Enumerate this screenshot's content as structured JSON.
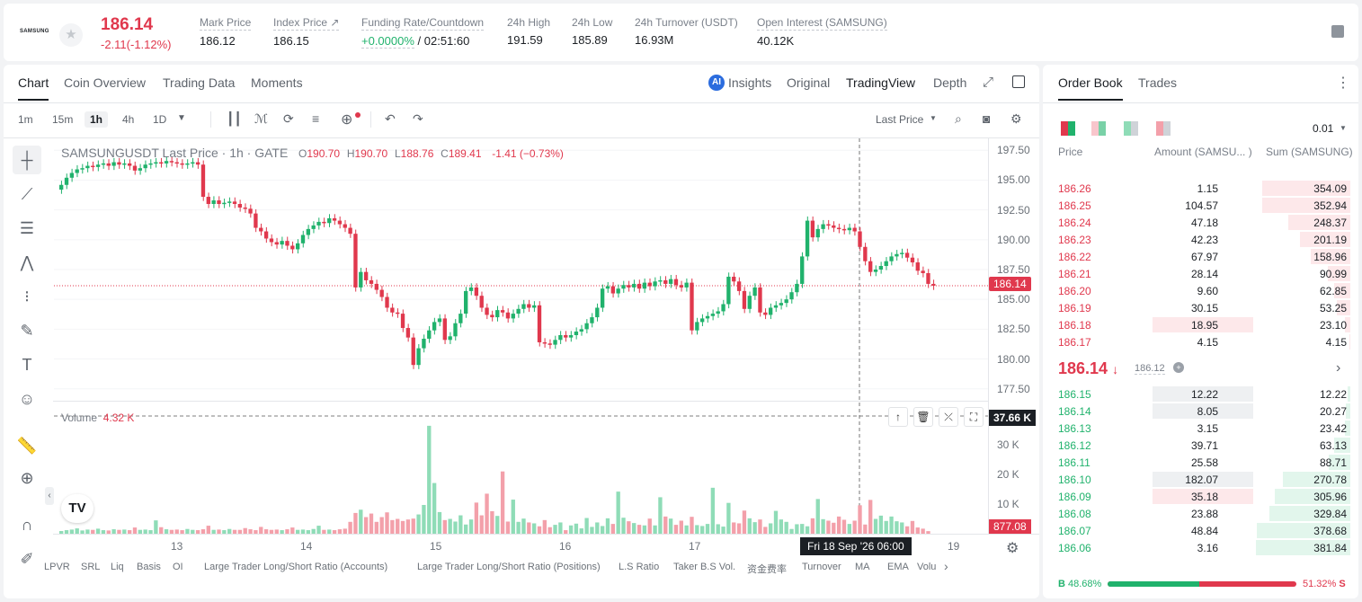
{
  "header": {
    "logo": "SAMSUNG",
    "price": "186.14",
    "change": "-2.11(-1.12%)",
    "stats": [
      {
        "label": "Mark Price",
        "value": "186.12"
      },
      {
        "label": "Index Price ↗",
        "value": "186.15"
      },
      {
        "label": "Funding Rate/Countdown",
        "value_green": "+0.0000%",
        "value": " / 02:51:60"
      },
      {
        "label": "24h High",
        "value": "191.59"
      },
      {
        "label": "24h Low",
        "value": "185.89"
      },
      {
        "label": "24h Turnover (USDT)",
        "value": "16.93M"
      },
      {
        "label": "Open Interest (SAMSUNG)",
        "value": "40.12K"
      }
    ]
  },
  "chart_tabs": [
    "Chart",
    "Coin Overview",
    "Trading Data",
    "Moments"
  ],
  "view_tabs": {
    "insights": "Insights",
    "original": "Original",
    "tradingview": "TradingView",
    "depth": "Depth"
  },
  "intervals": [
    "1m",
    "15m",
    "1h",
    "4h",
    "1D"
  ],
  "price_type": "Last Price",
  "legend": {
    "symbol": "SAMSUNGUSDT Last Price · 1h · GATE",
    "o": "O",
    "o_val": "190.70",
    "h": "H",
    "h_val": "190.70",
    "l": "L",
    "l_val": "188.76",
    "c": "C",
    "c_val": "189.41",
    "chg": "-1.41 (−0.73%)"
  },
  "volume_legend": {
    "label": "Volume",
    "value": "4.32 K"
  },
  "price_tag": "186.14",
  "volume_tag": "37.66 K",
  "volume_last_tag": "877.08",
  "crosshair_date": "Fri 18 Sep '26   06:00",
  "indicators": [
    "LPVR",
    "SRL",
    "Liq",
    "Basis",
    "OI",
    "Large Trader Long/Short Ratio (Accounts)",
    "Large Trader Long/Short Ratio (Positions)",
    "L.S Ratio",
    "Taker B.S Vol.",
    "资金费率",
    "Turnover",
    "MA",
    "EMA",
    "Volu"
  ],
  "chart_data": {
    "type": "candlestick",
    "y_ticks": [
      "197.50",
      "195.00",
      "192.50",
      "190.00",
      "187.50",
      "185.00",
      "182.50",
      "180.00",
      "177.50"
    ],
    "volume_ticks": [
      "30 K",
      "20 K",
      "10 K"
    ],
    "x_ticks": [
      "13",
      "14",
      "15",
      "16",
      "17",
      "19"
    ],
    "ylim": [
      176.5,
      198.5
    ],
    "volume_ylim": [
      0,
      40000
    ],
    "close_series": [
      194.6,
      195.2,
      195.6,
      195.9,
      196.0,
      196.2,
      196.1,
      196.3,
      196.4,
      196.2,
      196.5,
      196.3,
      196.4,
      196.2,
      195.8,
      196.0,
      196.3,
      196.4,
      196.5,
      196.4,
      196.6,
      196.5,
      196.4,
      196.3,
      196.4,
      196.5,
      196.3,
      193.6,
      193.0,
      193.3,
      193.0,
      193.1,
      193.2,
      193.0,
      192.7,
      192.6,
      192.2,
      191.0,
      190.7,
      190.1,
      189.8,
      189.6,
      189.9,
      189.5,
      189.2,
      189.7,
      190.4,
      190.9,
      191.2,
      191.5,
      191.4,
      191.8,
      191.6,
      191.3,
      191.0,
      190.5,
      186.0,
      187.3,
      186.6,
      186.3,
      185.8,
      185.2,
      184.3,
      183.9,
      183.8,
      182.6,
      181.8,
      179.5,
      180.9,
      181.7,
      182.4,
      183.1,
      183.4,
      181.6,
      181.9,
      183.0,
      183.8,
      185.7,
      186.0,
      185.3,
      184.3,
      183.7,
      183.5,
      184.1,
      183.9,
      183.4,
      183.8,
      184.2,
      184.6,
      184.3,
      184.5,
      181.4,
      181.3,
      181.2,
      181.6,
      182.0,
      181.8,
      182.0,
      182.3,
      182.5,
      183.0,
      183.5,
      184.3,
      185.9,
      186.1,
      185.5,
      185.9,
      186.2,
      186.0,
      186.3,
      185.9,
      186.4,
      186.1,
      186.5,
      186.6,
      186.3,
      186.7,
      186.2,
      186.0,
      186.4,
      182.4,
      183.1,
      183.4,
      183.6,
      183.8,
      184.0,
      184.6,
      186.9,
      186.5,
      185.7,
      184.2,
      185.3,
      186.0,
      183.9,
      183.7,
      184.3,
      184.5,
      184.7,
      185.0,
      185.6,
      186.3,
      188.6,
      191.6,
      190.2,
      190.9,
      191.3,
      191.2,
      191.0,
      190.9,
      190.8,
      191.0,
      190.7,
      189.4,
      188.2,
      187.3,
      187.5,
      187.8,
      188.2,
      188.6,
      188.8,
      188.9,
      188.5,
      188.1,
      187.4,
      187.2,
      186.3,
      186.14
    ],
    "volume_series": [
      900,
      1200,
      1400,
      1800,
      1100,
      1400,
      1300,
      1700,
      1200,
      1100,
      1500,
      1300,
      1400,
      1200,
      2100,
      1300,
      1400,
      1200,
      4500,
      2200,
      1500,
      1300,
      1400,
      1200,
      1600,
      1300,
      1200,
      1500,
      2700,
      1300,
      1400,
      1200,
      1600,
      1300,
      1300,
      1900,
      1500,
      1200,
      2300,
      1500,
      1300,
      1400,
      1200,
      1500,
      2100,
      1300,
      1400,
      1200,
      1600,
      2700,
      1300,
      1400,
      1200,
      1500,
      1700,
      4000,
      7000,
      8100,
      5600,
      6800,
      4000,
      5600,
      7200,
      4600,
      5000,
      4300,
      4800,
      5100,
      6500,
      9700,
      36400,
      17100,
      7300,
      4600,
      5000,
      4100,
      6200,
      3100,
      4800,
      10500,
      6200,
      13500,
      7600,
      6000,
      21000,
      4100,
      11500,
      4000,
      5100,
      3800,
      3500,
      2500,
      4600,
      2200,
      3000,
      3800,
      1200,
      2800,
      3400,
      1800,
      5300,
      2300,
      3800,
      2600,
      5200,
      3300,
      14200,
      5400,
      4200,
      3600,
      3000,
      2800,
      5100,
      2800,
      12300,
      5800,
      5100,
      3000,
      4400,
      2800,
      5700,
      2900,
      2600,
      3300,
      15500,
      3200,
      2400,
      10400,
      3800,
      3500,
      7800,
      5200,
      3900,
      4800,
      2300,
      3500,
      7700,
      4800,
      4000,
      1600,
      3200,
      3300,
      2500,
      5200,
      11700,
      4900,
      4400,
      3700,
      5800,
      4700,
      3300,
      4400,
      9600,
      3100,
      11400,
      5000,
      6100,
      4300,
      5800,
      4200,
      3800,
      2500,
      4300,
      2100,
      1700,
      877
    ]
  },
  "orderbook": {
    "tabs": [
      "Order Book",
      "Trades"
    ],
    "precision": "0.01",
    "headers": [
      "Price",
      "Amount (SAMSU... )",
      "Sum (SAMSUNG)"
    ],
    "asks": [
      {
        "price": "186.26",
        "amount": "1.15",
        "sum": "354.09",
        "depth": 0.93,
        "amt": 0.0
      },
      {
        "price": "186.25",
        "amount": "104.57",
        "sum": "352.94",
        "depth": 0.93,
        "amt": 0.0
      },
      {
        "price": "186.24",
        "amount": "47.18",
        "sum": "248.37",
        "depth": 0.66,
        "amt": 0.0
      },
      {
        "price": "186.23",
        "amount": "42.23",
        "sum": "201.19",
        "depth": 0.53,
        "amt": 0.0
      },
      {
        "price": "186.22",
        "amount": "67.97",
        "sum": "158.96",
        "depth": 0.42,
        "amt": 0.0
      },
      {
        "price": "186.21",
        "amount": "28.14",
        "sum": "90.99",
        "depth": 0.24,
        "amt": 0.0
      },
      {
        "price": "186.20",
        "amount": "9.60",
        "sum": "62.85",
        "depth": 0.17,
        "amt": 0.0
      },
      {
        "price": "186.19",
        "amount": "30.15",
        "sum": "53.25",
        "depth": 0.14,
        "amt": 0.0
      },
      {
        "price": "186.18",
        "amount": "18.95",
        "sum": "23.10",
        "depth": 0.06,
        "amt": 1.0
      },
      {
        "price": "186.17",
        "amount": "4.15",
        "sum": "4.15",
        "depth": 0.01,
        "amt": 0.0
      }
    ],
    "mid_price": "186.14",
    "mid_arrow": "↓",
    "mark": "186.12",
    "bids": [
      {
        "price": "186.15",
        "amount": "12.22",
        "sum": "12.22",
        "depth": 0.03,
        "amt": 1.0
      },
      {
        "price": "186.14",
        "amount": "8.05",
        "sum": "20.27",
        "depth": 0.05,
        "amt": 1.0
      },
      {
        "price": "186.13",
        "amount": "3.15",
        "sum": "23.42",
        "depth": 0.06,
        "amt": 0.0
      },
      {
        "price": "186.12",
        "amount": "39.71",
        "sum": "63.13",
        "depth": 0.17,
        "amt": 0.0
      },
      {
        "price": "186.11",
        "amount": "25.58",
        "sum": "88.71",
        "depth": 0.23,
        "amt": 0.0
      },
      {
        "price": "186.10",
        "amount": "182.07",
        "sum": "270.78",
        "depth": 0.71,
        "amt": 1.0
      },
      {
        "price": "186.09",
        "amount": "35.18",
        "sum": "305.96",
        "depth": 0.8,
        "amt": 1.0
      },
      {
        "price": "186.08",
        "amount": "23.88",
        "sum": "329.84",
        "depth": 0.86,
        "amt": 0.0
      },
      {
        "price": "186.07",
        "amount": "48.84",
        "sum": "378.68",
        "depth": 0.99,
        "amt": 0.0
      },
      {
        "price": "186.06",
        "amount": "3.16",
        "sum": "381.84",
        "depth": 1.0,
        "amt": 0.0
      }
    ],
    "buy_label": "B",
    "buy_ratio": "48.68%",
    "sell_label": "S",
    "sell_ratio": "51.32%",
    "buy_fraction": 0.4868
  },
  "colors": {
    "up": "#20b26c",
    "down": "#e0384d"
  }
}
